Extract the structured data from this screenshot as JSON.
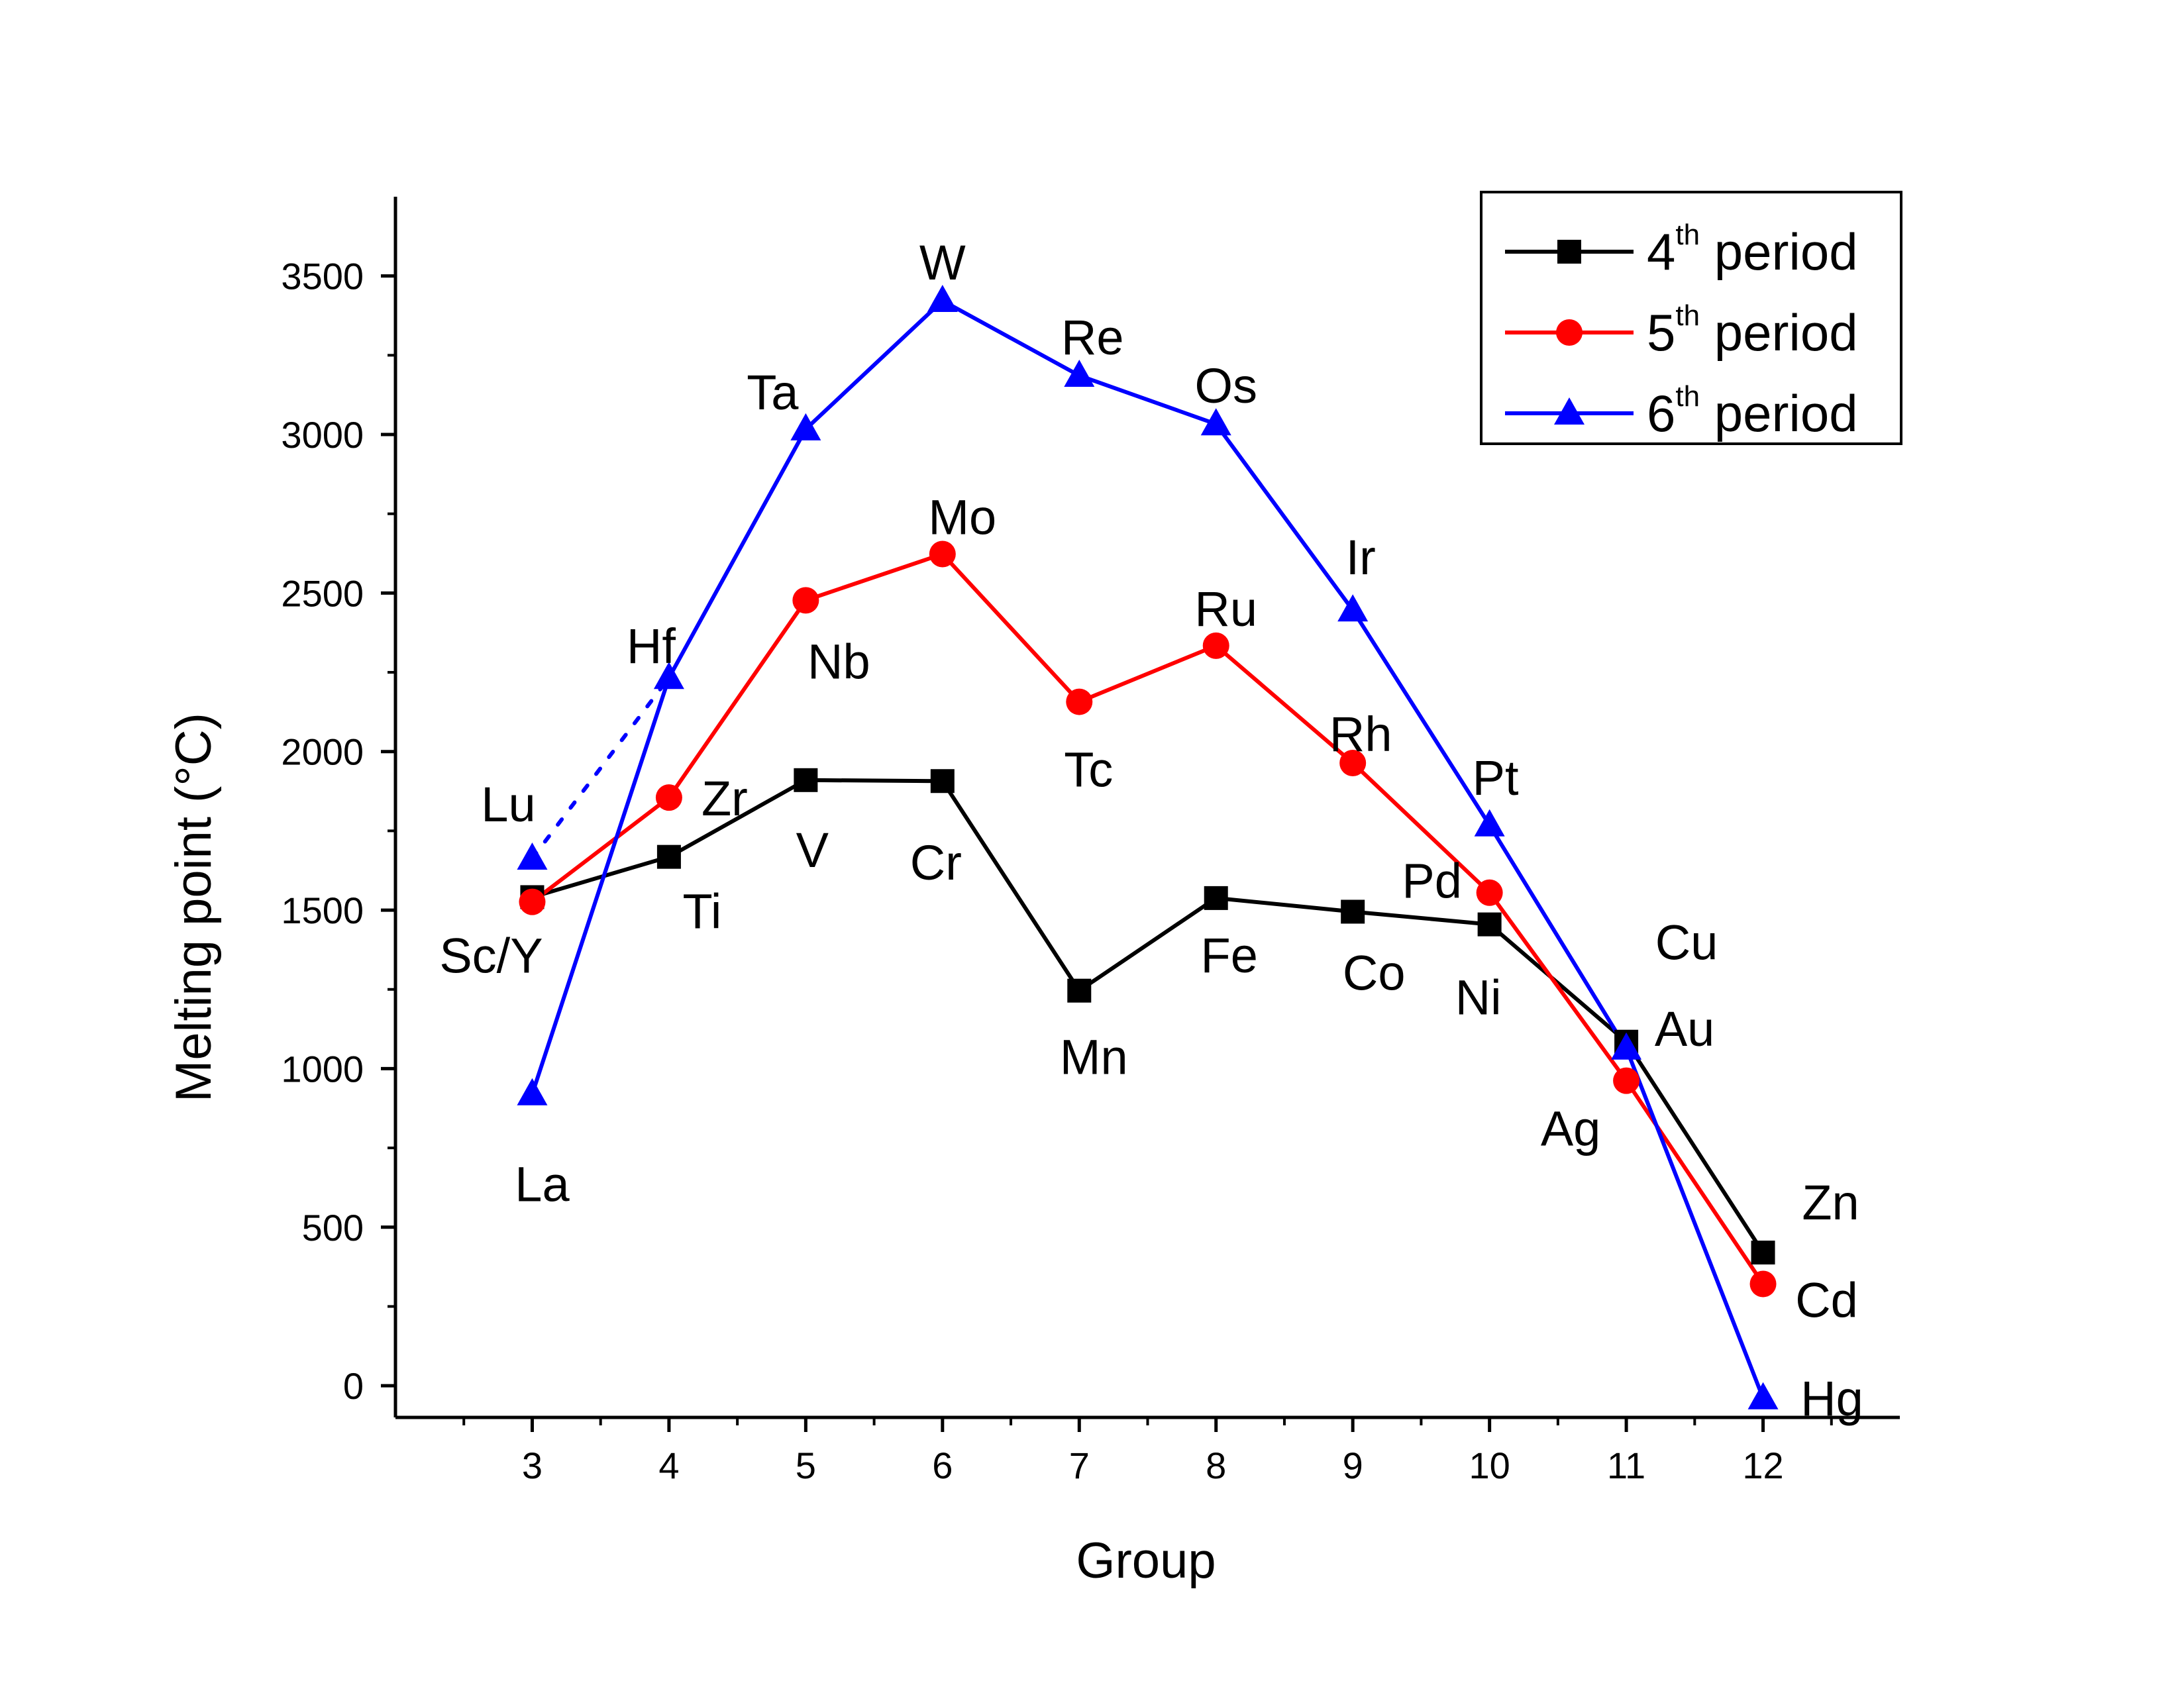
{
  "chart_data": {
    "type": "line",
    "xlabel": "Group",
    "ylabel": "Melting point (°C)",
    "xlim": [
      2,
      13
    ],
    "ylim": [
      -100,
      3750
    ],
    "x_ticks": [
      3,
      4,
      5,
      6,
      7,
      8,
      9,
      10,
      11,
      12
    ],
    "y_ticks": [
      0,
      500,
      1000,
      1500,
      2000,
      2500,
      3000,
      3500
    ],
    "legend_position": "top-right",
    "series": [
      {
        "name_base": "4",
        "name_sup": "th",
        "name_rest": " period",
        "color": "#000000",
        "marker": "square",
        "x": [
          3,
          4,
          5,
          6,
          7,
          8,
          9,
          10,
          11,
          12
        ],
        "values": [
          1541,
          1668,
          1910,
          1907,
          1246,
          1538,
          1495,
          1455,
          1085,
          420
        ],
        "labels": [
          "Sc/Y",
          "Ti",
          "V",
          "Cr",
          "Mn",
          "Fe",
          "Co",
          "Ni",
          "Cu",
          "Zn"
        ]
      },
      {
        "name_base": "5",
        "name_sup": "th",
        "name_rest": " period",
        "color": "#ff0000",
        "marker": "circle",
        "x": [
          3,
          4,
          5,
          6,
          7,
          8,
          9,
          10,
          11,
          12
        ],
        "values": [
          1526,
          1855,
          2477,
          2623,
          2157,
          2334,
          1964,
          1555,
          962,
          321
        ],
        "labels": [
          "",
          "Zr",
          "Nb",
          "Mo",
          "Tc",
          "Ru",
          "Rh",
          "Pd",
          "Ag",
          "Cd"
        ]
      },
      {
        "name_base": "6",
        "name_sup": "th",
        "name_rest": " period",
        "color": "#0000ff",
        "marker": "triangle",
        "x": [
          3,
          4,
          5,
          6,
          7,
          8,
          9,
          10,
          11,
          12
        ],
        "values": [
          920,
          2233,
          3017,
          3422,
          3186,
          3033,
          2446,
          1768,
          1064,
          -39
        ],
        "labels": [
          "La",
          "Hf",
          "Ta",
          "W",
          "Re",
          "Os",
          "Ir",
          "Pt",
          "Au",
          "Hg"
        ]
      }
    ],
    "extra_points": [
      {
        "label": "Lu",
        "x": 3,
        "value": 1663,
        "color": "#0000ff",
        "marker": "triangle",
        "dotted_to": {
          "x": 4,
          "value": 2233
        }
      }
    ]
  }
}
